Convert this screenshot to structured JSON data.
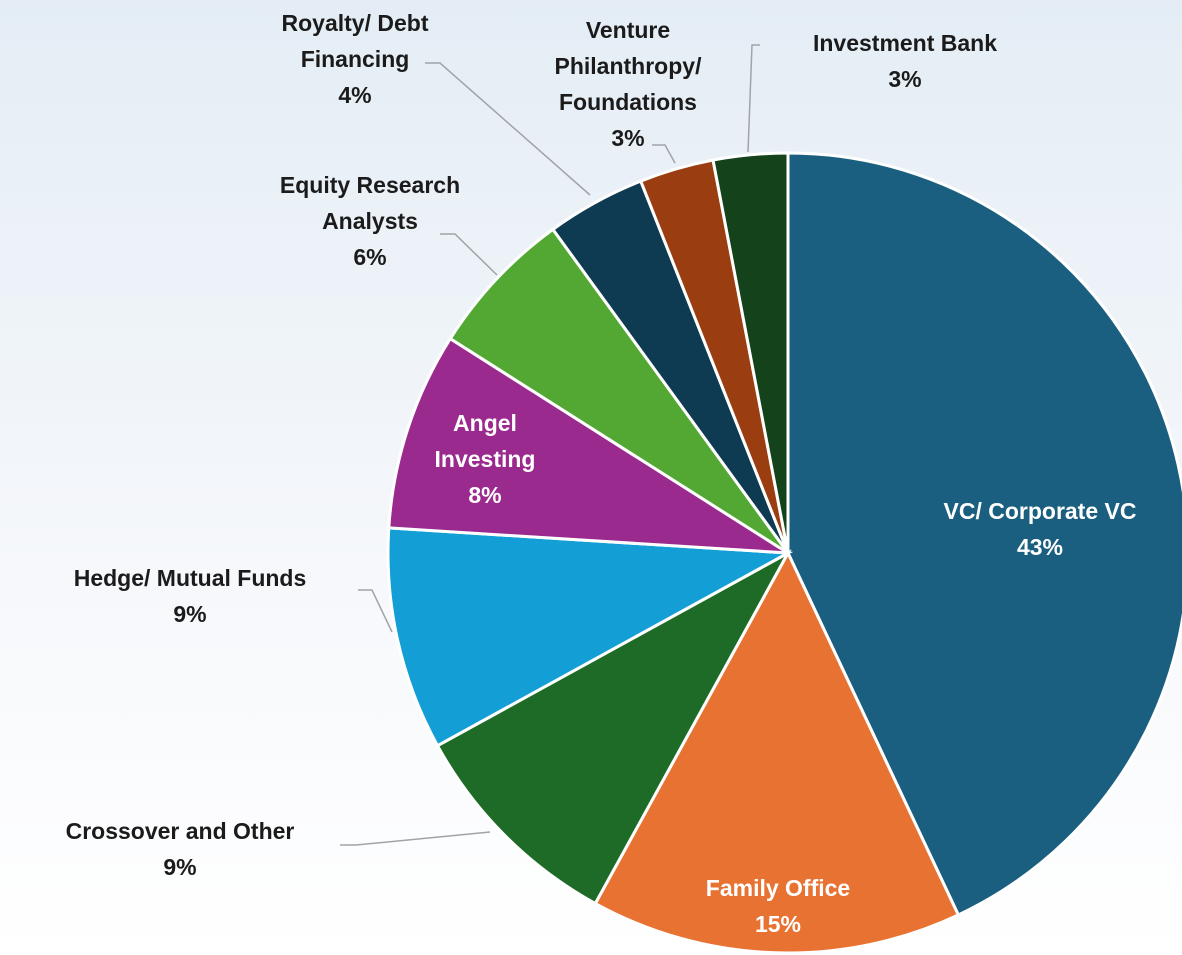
{
  "chart_data": {
    "type": "pie",
    "categories": [
      "VC/ Corporate VC",
      "Family Office",
      "Crossover and Other",
      "Hedge/ Mutual Funds",
      "Angel Investing",
      "Equity Research Analysts",
      "Royalty/ Debt Financing",
      "Venture Philanthropy/ Foundations",
      "Investment Bank"
    ],
    "values": [
      43,
      15,
      9,
      9,
      8,
      6,
      4,
      3,
      3
    ],
    "value_labels": [
      "43%",
      "15%",
      "9%",
      "9%",
      "8%",
      "6%",
      "4%",
      "3%",
      "3%"
    ],
    "colors": [
      "#1a5f80",
      "#e87232",
      "#1e6b27",
      "#139fd6",
      "#9b2a8f",
      "#52a832",
      "#0f3b52",
      "#9a3e12",
      "#14421a"
    ]
  }
}
